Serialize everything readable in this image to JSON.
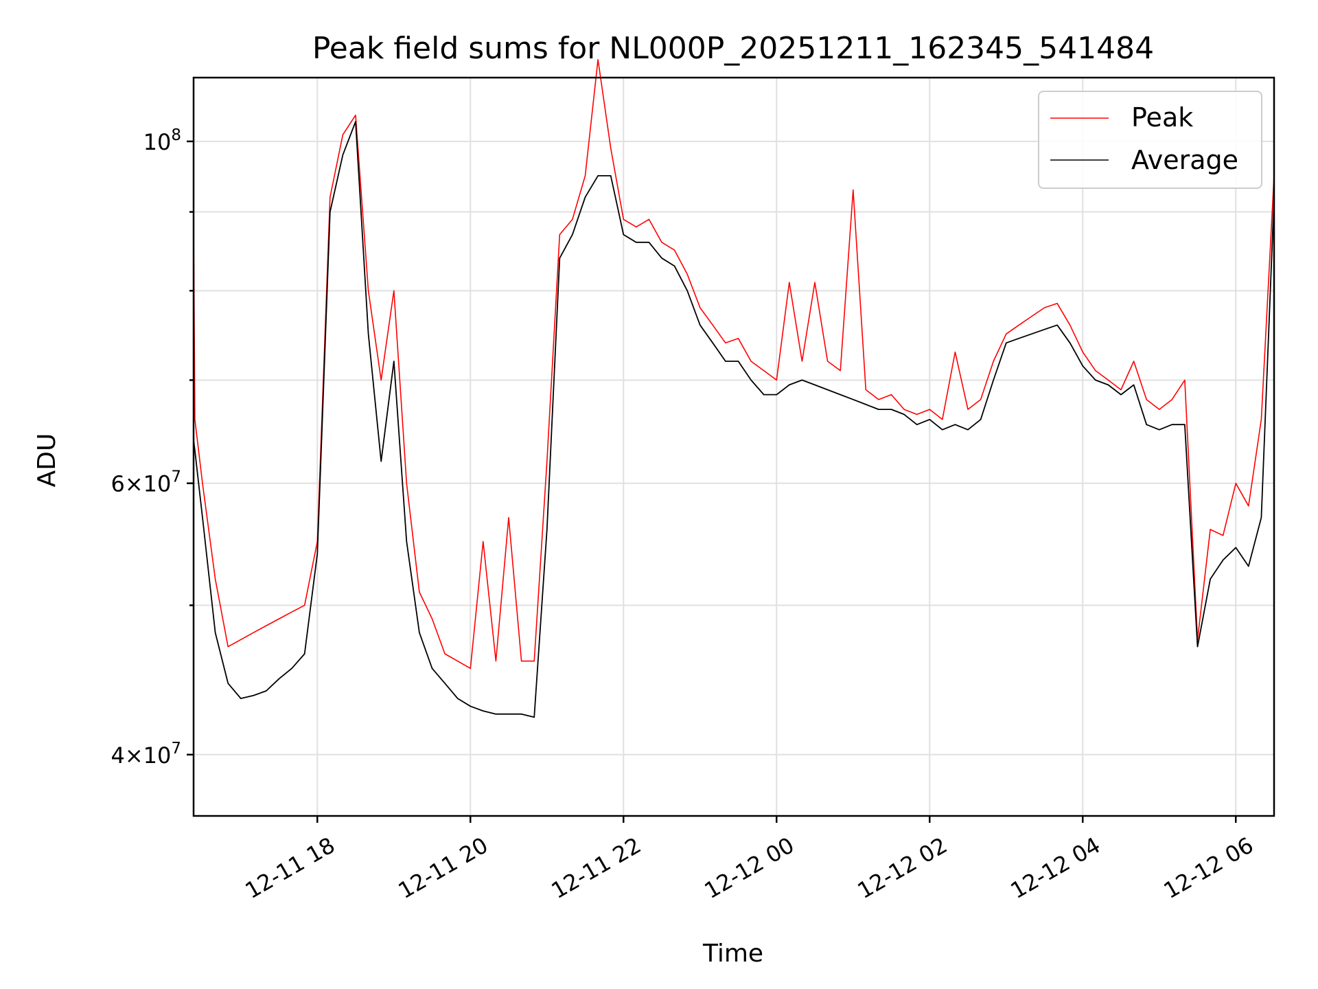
{
  "chart_data": {
    "type": "line",
    "title": "Peak field sums for NL000P_20251211_162345_541484",
    "xlabel": "Time",
    "ylabel": "ADU",
    "yscale": "log",
    "grid": true,
    "legend_position": "top-right",
    "xlim": [
      "2025-12-11 16:23",
      "2025-12-12 06:30"
    ],
    "ylim": [
      36500000,
      110000000
    ],
    "x_ticks": [
      {
        "value": "2025-12-11 18:00",
        "label": "12-11 18"
      },
      {
        "value": "2025-12-11 20:00",
        "label": "12-11 20"
      },
      {
        "value": "2025-12-11 22:00",
        "label": "12-11 22"
      },
      {
        "value": "2025-12-12 00:00",
        "label": "12-12 00"
      },
      {
        "value": "2025-12-12 02:00",
        "label": "12-12 02"
      },
      {
        "value": "2025-12-12 04:00",
        "label": "12-12 04"
      },
      {
        "value": "2025-12-12 06:00",
        "label": "12-12 06"
      }
    ],
    "y_ticks_major": [
      {
        "value": 40000000,
        "mantissa": "4",
        "exponent": "7"
      },
      {
        "value": 60000000,
        "mantissa": "6",
        "exponent": "7"
      },
      {
        "value": 100000000,
        "mantissa": "",
        "exponent": "8"
      }
    ],
    "y_ticks_minor": [
      50000000,
      70000000,
      80000000,
      90000000
    ],
    "series": [
      {
        "name": "Peak",
        "color": "#ff0000",
        "x": [
          "2025-12-11 16:23",
          "2025-12-11 16:24",
          "2025-12-11 16:30",
          "2025-12-11 16:40",
          "2025-12-11 16:50",
          "2025-12-11 17:00",
          "2025-12-11 17:10",
          "2025-12-11 17:20",
          "2025-12-11 17:30",
          "2025-12-11 17:40",
          "2025-12-11 17:50",
          "2025-12-11 18:00",
          "2025-12-11 18:10",
          "2025-12-11 18:20",
          "2025-12-11 18:30",
          "2025-12-11 18:40",
          "2025-12-11 18:50",
          "2025-12-11 19:00",
          "2025-12-11 19:10",
          "2025-12-11 19:20",
          "2025-12-11 19:30",
          "2025-12-11 19:40",
          "2025-12-11 19:50",
          "2025-12-11 20:00",
          "2025-12-11 20:10",
          "2025-12-11 20:20",
          "2025-12-11 20:30",
          "2025-12-11 20:40",
          "2025-12-11 20:50",
          "2025-12-11 21:00",
          "2025-12-11 21:10",
          "2025-12-11 21:20",
          "2025-12-11 21:30",
          "2025-12-11 21:40",
          "2025-12-11 21:50",
          "2025-12-11 22:00",
          "2025-12-11 22:10",
          "2025-12-11 22:20",
          "2025-12-11 22:30",
          "2025-12-11 22:40",
          "2025-12-11 22:50",
          "2025-12-11 23:00",
          "2025-12-11 23:10",
          "2025-12-11 23:20",
          "2025-12-11 23:30",
          "2025-12-11 23:40",
          "2025-12-11 23:50",
          "2025-12-12 00:00",
          "2025-12-12 00:10",
          "2025-12-12 00:20",
          "2025-12-12 00:30",
          "2025-12-12 00:40",
          "2025-12-12 00:50",
          "2025-12-12 01:00",
          "2025-12-12 01:10",
          "2025-12-12 01:20",
          "2025-12-12 01:30",
          "2025-12-12 01:40",
          "2025-12-12 01:50",
          "2025-12-12 02:00",
          "2025-12-12 02:10",
          "2025-12-12 02:20",
          "2025-12-12 02:30",
          "2025-12-12 02:40",
          "2025-12-12 02:50",
          "2025-12-12 03:00",
          "2025-12-12 03:10",
          "2025-12-12 03:20",
          "2025-12-12 03:30",
          "2025-12-12 03:40",
          "2025-12-12 03:50",
          "2025-12-12 04:00",
          "2025-12-12 04:10",
          "2025-12-12 04:20",
          "2025-12-12 04:30",
          "2025-12-12 04:40",
          "2025-12-12 04:50",
          "2025-12-12 05:00",
          "2025-12-12 05:10",
          "2025-12-12 05:20",
          "2025-12-12 05:30",
          "2025-12-12 05:40",
          "2025-12-12 05:50",
          "2025-12-12 06:00",
          "2025-12-12 06:10",
          "2025-12-12 06:20",
          "2025-12-12 06:30"
        ],
        "y": [
          89000000,
          66000000,
          60000000,
          52000000,
          47000000,
          47500000,
          48000000,
          48500000,
          49000000,
          49500000,
          50000000,
          55000000,
          92000000,
          101000000,
          104000000,
          80000000,
          70000000,
          80000000,
          60000000,
          51000000,
          49000000,
          46500000,
          46000000,
          45500000,
          55000000,
          46000000,
          57000000,
          46000000,
          46000000,
          62000000,
          87000000,
          89000000,
          95000000,
          113000000,
          99000000,
          89000000,
          88000000,
          89000000,
          86000000,
          85000000,
          82000000,
          78000000,
          76000000,
          74000000,
          74500000,
          72000000,
          71000000,
          70000000,
          81000000,
          72000000,
          81000000,
          72000000,
          71000000,
          93000000,
          69000000,
          68000000,
          68500000,
          67000000,
          66500000,
          67000000,
          66000000,
          73000000,
          67000000,
          68000000,
          72000000,
          75000000,
          76000000,
          77000000,
          78000000,
          78500000,
          76000000,
          73000000,
          71000000,
          70000000,
          69000000,
          72000000,
          68000000,
          67000000,
          68000000,
          70000000,
          47500000,
          56000000,
          55500000,
          60000000,
          58000000,
          66000000,
          95000000
        ]
      },
      {
        "name": "Average",
        "color": "#000000",
        "x": [
          "2025-12-11 16:23",
          "2025-12-11 16:24",
          "2025-12-11 16:30",
          "2025-12-11 16:40",
          "2025-12-11 16:50",
          "2025-12-11 17:00",
          "2025-12-11 17:10",
          "2025-12-11 17:20",
          "2025-12-11 17:30",
          "2025-12-11 17:40",
          "2025-12-11 17:50",
          "2025-12-11 18:00",
          "2025-12-11 18:10",
          "2025-12-11 18:20",
          "2025-12-11 18:30",
          "2025-12-11 18:40",
          "2025-12-11 18:50",
          "2025-12-11 19:00",
          "2025-12-11 19:10",
          "2025-12-11 19:20",
          "2025-12-11 19:30",
          "2025-12-11 19:40",
          "2025-12-11 19:50",
          "2025-12-11 20:00",
          "2025-12-11 20:10",
          "2025-12-11 20:20",
          "2025-12-11 20:30",
          "2025-12-11 20:40",
          "2025-12-11 20:50",
          "2025-12-11 21:00",
          "2025-12-11 21:10",
          "2025-12-11 21:20",
          "2025-12-11 21:30",
          "2025-12-11 21:40",
          "2025-12-11 21:50",
          "2025-12-11 22:00",
          "2025-12-11 22:10",
          "2025-12-11 22:20",
          "2025-12-11 22:30",
          "2025-12-11 22:40",
          "2025-12-11 22:50",
          "2025-12-11 23:00",
          "2025-12-11 23:10",
          "2025-12-11 23:20",
          "2025-12-11 23:30",
          "2025-12-11 23:40",
          "2025-12-11 23:50",
          "2025-12-12 00:00",
          "2025-12-12 00:10",
          "2025-12-12 00:20",
          "2025-12-12 00:30",
          "2025-12-12 00:40",
          "2025-12-12 00:50",
          "2025-12-12 01:00",
          "2025-12-12 01:10",
          "2025-12-12 01:20",
          "2025-12-12 01:30",
          "2025-12-12 01:40",
          "2025-12-12 01:50",
          "2025-12-12 02:00",
          "2025-12-12 02:10",
          "2025-12-12 02:20",
          "2025-12-12 02:30",
          "2025-12-12 02:40",
          "2025-12-12 02:50",
          "2025-12-12 03:00",
          "2025-12-12 03:10",
          "2025-12-12 03:20",
          "2025-12-12 03:30",
          "2025-12-12 03:40",
          "2025-12-12 03:50",
          "2025-12-12 04:00",
          "2025-12-12 04:10",
          "2025-12-12 04:20",
          "2025-12-12 04:30",
          "2025-12-12 04:40",
          "2025-12-12 04:50",
          "2025-12-12 05:00",
          "2025-12-12 05:10",
          "2025-12-12 05:20",
          "2025-12-12 05:30",
          "2025-12-12 05:40",
          "2025-12-12 05:50",
          "2025-12-12 06:00",
          "2025-12-12 06:10",
          "2025-12-12 06:20",
          "2025-12-12 06:30"
        ],
        "y": [
          64000000,
          63000000,
          57000000,
          48000000,
          44500000,
          43500000,
          43700000,
          44000000,
          44800000,
          45500000,
          46500000,
          54000000,
          90000000,
          98000000,
          103000000,
          75000000,
          62000000,
          72000000,
          55000000,
          48000000,
          45500000,
          44500000,
          43500000,
          43000000,
          42700000,
          42500000,
          42500000,
          42500000,
          42300000,
          56000000,
          84000000,
          87000000,
          92000000,
          95000000,
          95000000,
          87000000,
          86000000,
          86000000,
          84000000,
          83000000,
          80000000,
          76000000,
          74000000,
          72000000,
          72000000,
          70000000,
          68500000,
          68500000,
          69500000,
          70000000,
          69500000,
          69000000,
          68500000,
          68000000,
          67500000,
          67000000,
          67000000,
          66500000,
          65500000,
          66000000,
          65000000,
          65500000,
          65000000,
          66000000,
          70000000,
          74000000,
          74500000,
          75000000,
          75500000,
          76000000,
          74000000,
          71500000,
          70000000,
          69500000,
          68500000,
          69500000,
          65500000,
          65000000,
          65500000,
          65500000,
          47000000,
          52000000,
          53500000,
          54500000,
          53000000,
          57000000,
          92000000
        ]
      }
    ]
  }
}
